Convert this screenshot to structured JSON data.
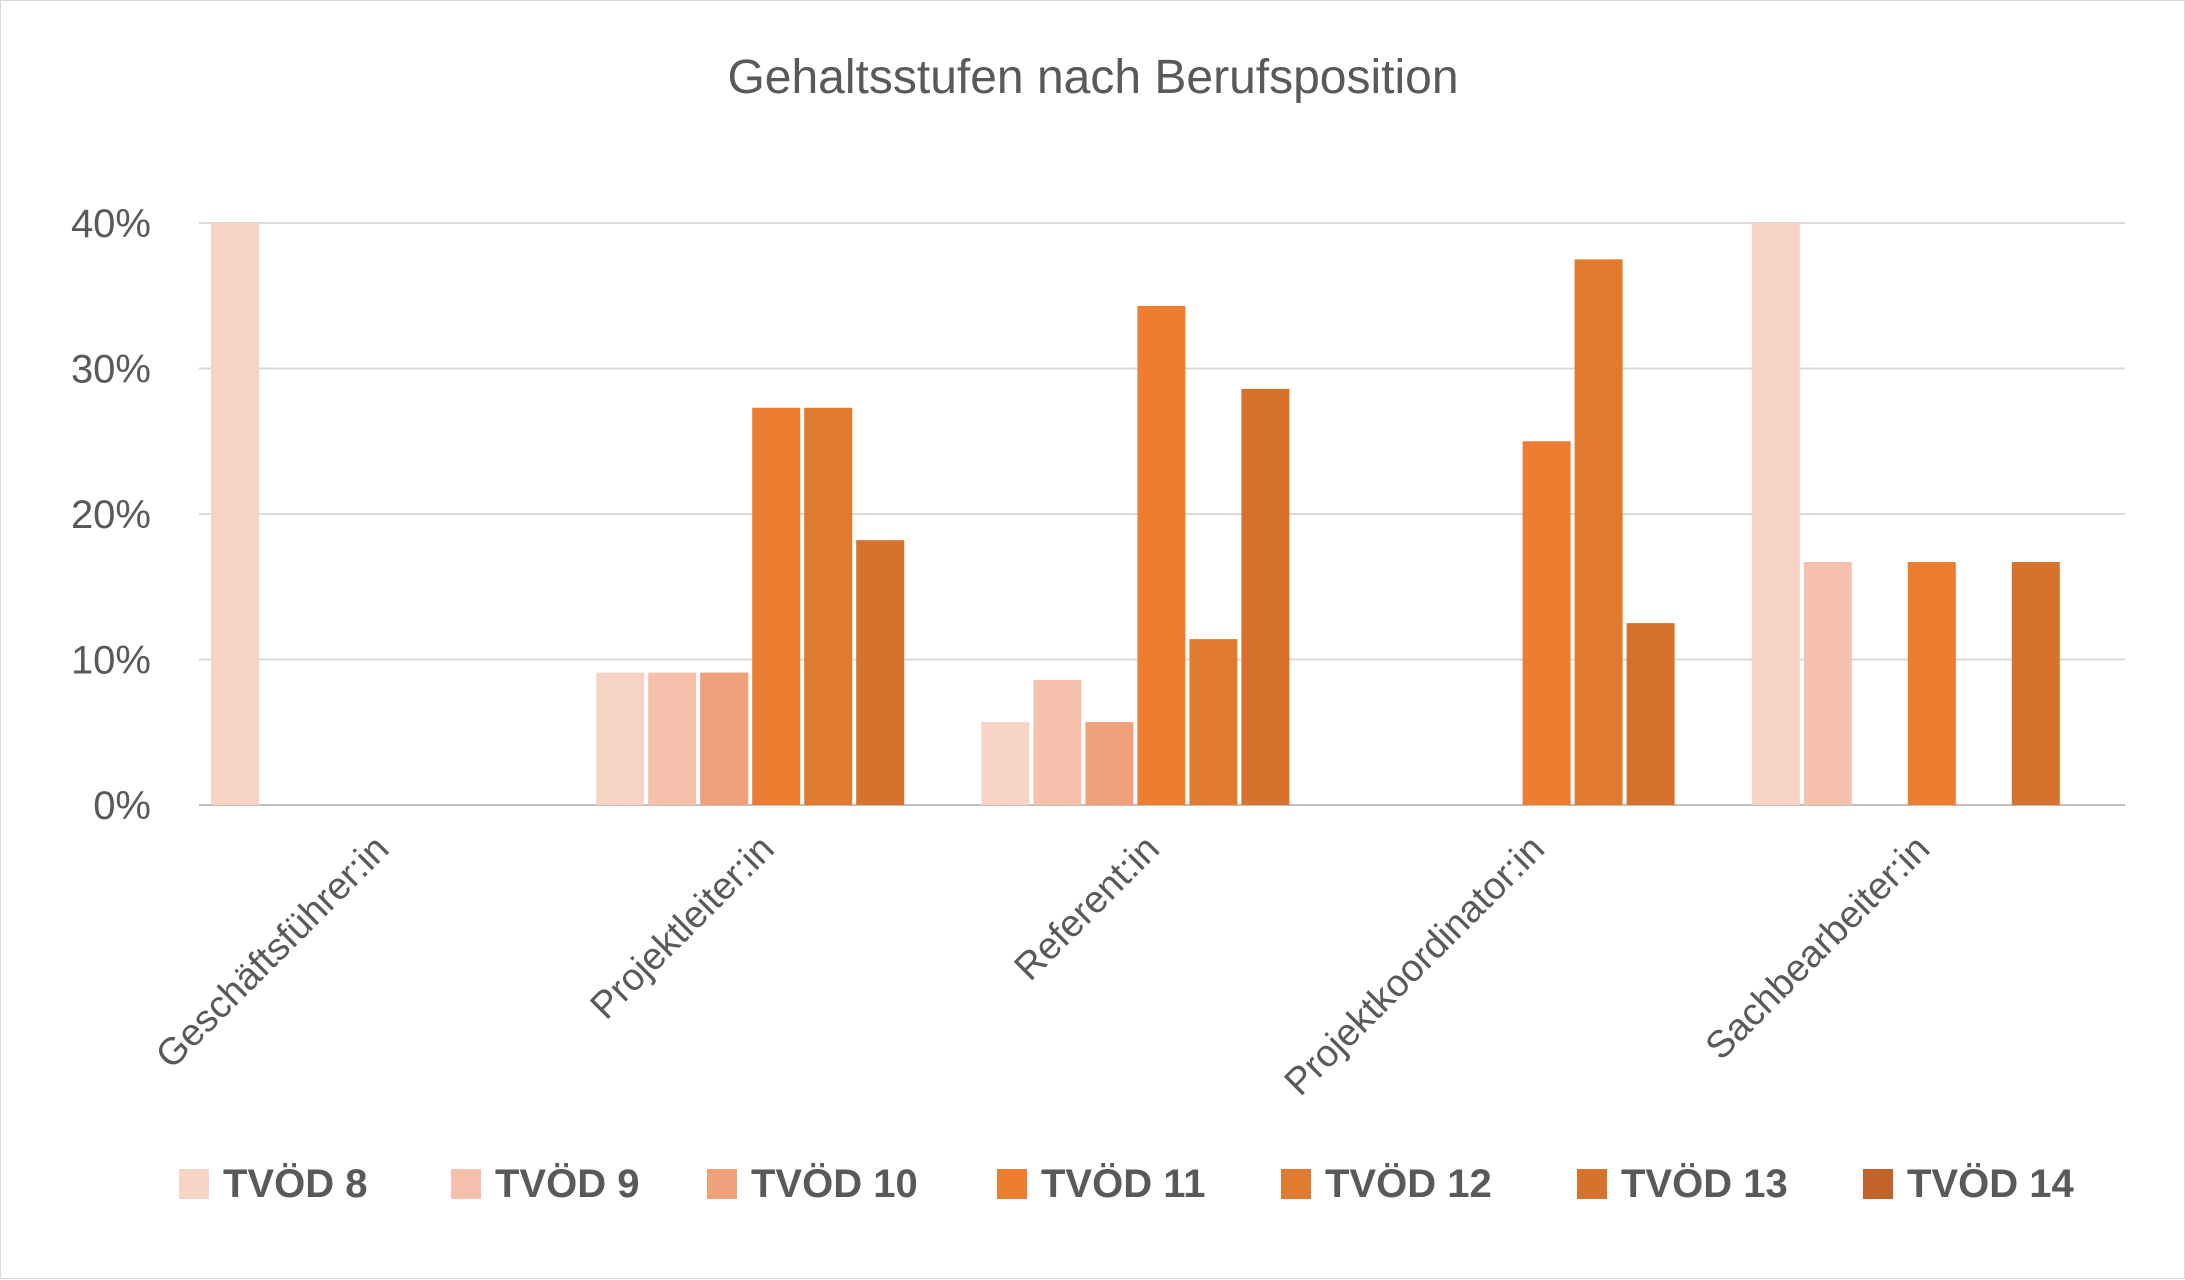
{
  "chart_data": {
    "type": "bar",
    "title": "Gehaltsstufen nach Berufsposition",
    "xlabel": "",
    "ylabel": "",
    "categories": [
      "Geschäftsführer:in",
      "Projektleiter:in",
      "Referent:in",
      "Projektkoordinator:in",
      "Sachbearbeiter:in"
    ],
    "y_ticks": [
      "0%",
      "10%",
      "20%",
      "30%",
      "40%"
    ],
    "ylim": [
      0,
      40
    ],
    "grid": true,
    "legend_position": "bottom",
    "series": [
      {
        "name": "TVÖD 8",
        "color": "#f7d3c6",
        "values": [
          40,
          9.1,
          5.7,
          0,
          40
        ]
      },
      {
        "name": "TVÖD 9",
        "color": "#f5c0ac",
        "values": [
          0,
          9.1,
          8.6,
          0,
          16.7
        ]
      },
      {
        "name": "TVÖD 10",
        "color": "#f0a07b",
        "values": [
          0,
          9.1,
          5.7,
          0,
          0
        ]
      },
      {
        "name": "TVÖD 11",
        "color": "#ed7d31",
        "values": [
          0,
          27.3,
          34.3,
          25.0,
          16.7
        ]
      },
      {
        "name": "TVÖD 12",
        "color": "#e07a2f",
        "values": [
          0,
          27.3,
          11.4,
          37.5,
          0
        ]
      },
      {
        "name": "TVÖD 13",
        "color": "#d6722c",
        "values": [
          0,
          18.2,
          28.6,
          12.5,
          16.7
        ]
      },
      {
        "name": "TVÖD 14",
        "color": "#c0622a",
        "values": [
          0,
          0,
          0,
          0,
          0
        ]
      }
    ]
  }
}
